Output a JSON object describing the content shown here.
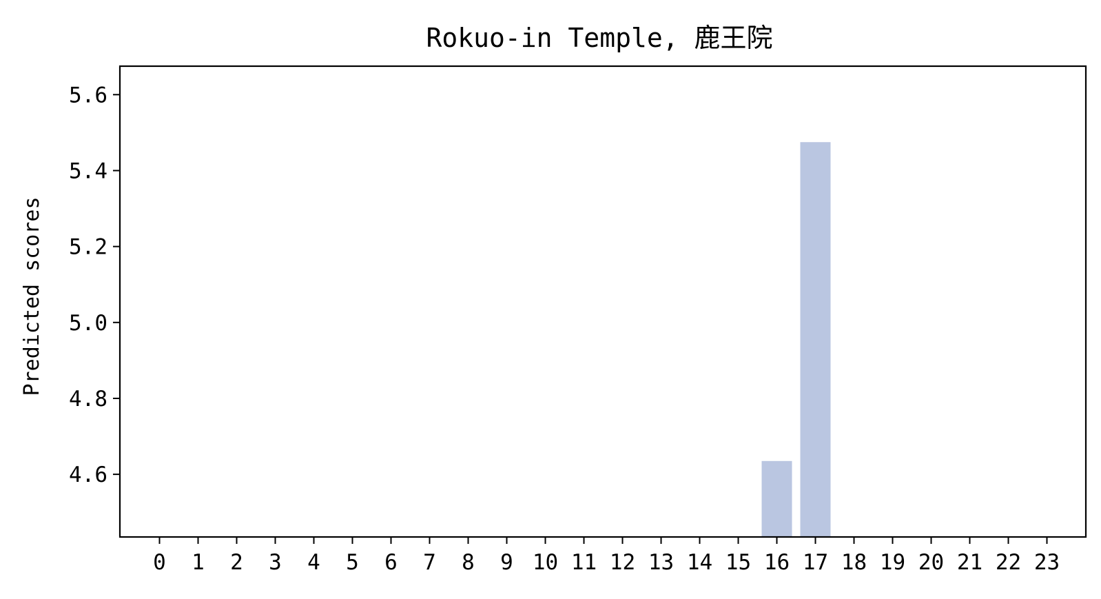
{
  "chart_data": {
    "type": "bar",
    "title": "Rokuo-in Temple, 鹿王院",
    "xlabel": "",
    "ylabel": "Predicted scores",
    "categories": [
      "0",
      "1",
      "2",
      "3",
      "4",
      "5",
      "6",
      "7",
      "8",
      "9",
      "10",
      "11",
      "12",
      "13",
      "14",
      "15",
      "16",
      "17",
      "18",
      "19",
      "20",
      "21",
      "22",
      "23"
    ],
    "values": [
      null,
      null,
      null,
      null,
      null,
      null,
      null,
      null,
      null,
      null,
      null,
      null,
      null,
      null,
      null,
      null,
      4.635,
      5.475,
      null,
      null,
      null,
      null,
      null,
      null
    ],
    "ylim": [
      4.435,
      5.675
    ],
    "yticks": [
      "4.6",
      "4.8",
      "5.0",
      "5.2",
      "5.4",
      "5.6"
    ],
    "bar_color": "#bac6e1",
    "grid": false,
    "legend": "none"
  }
}
